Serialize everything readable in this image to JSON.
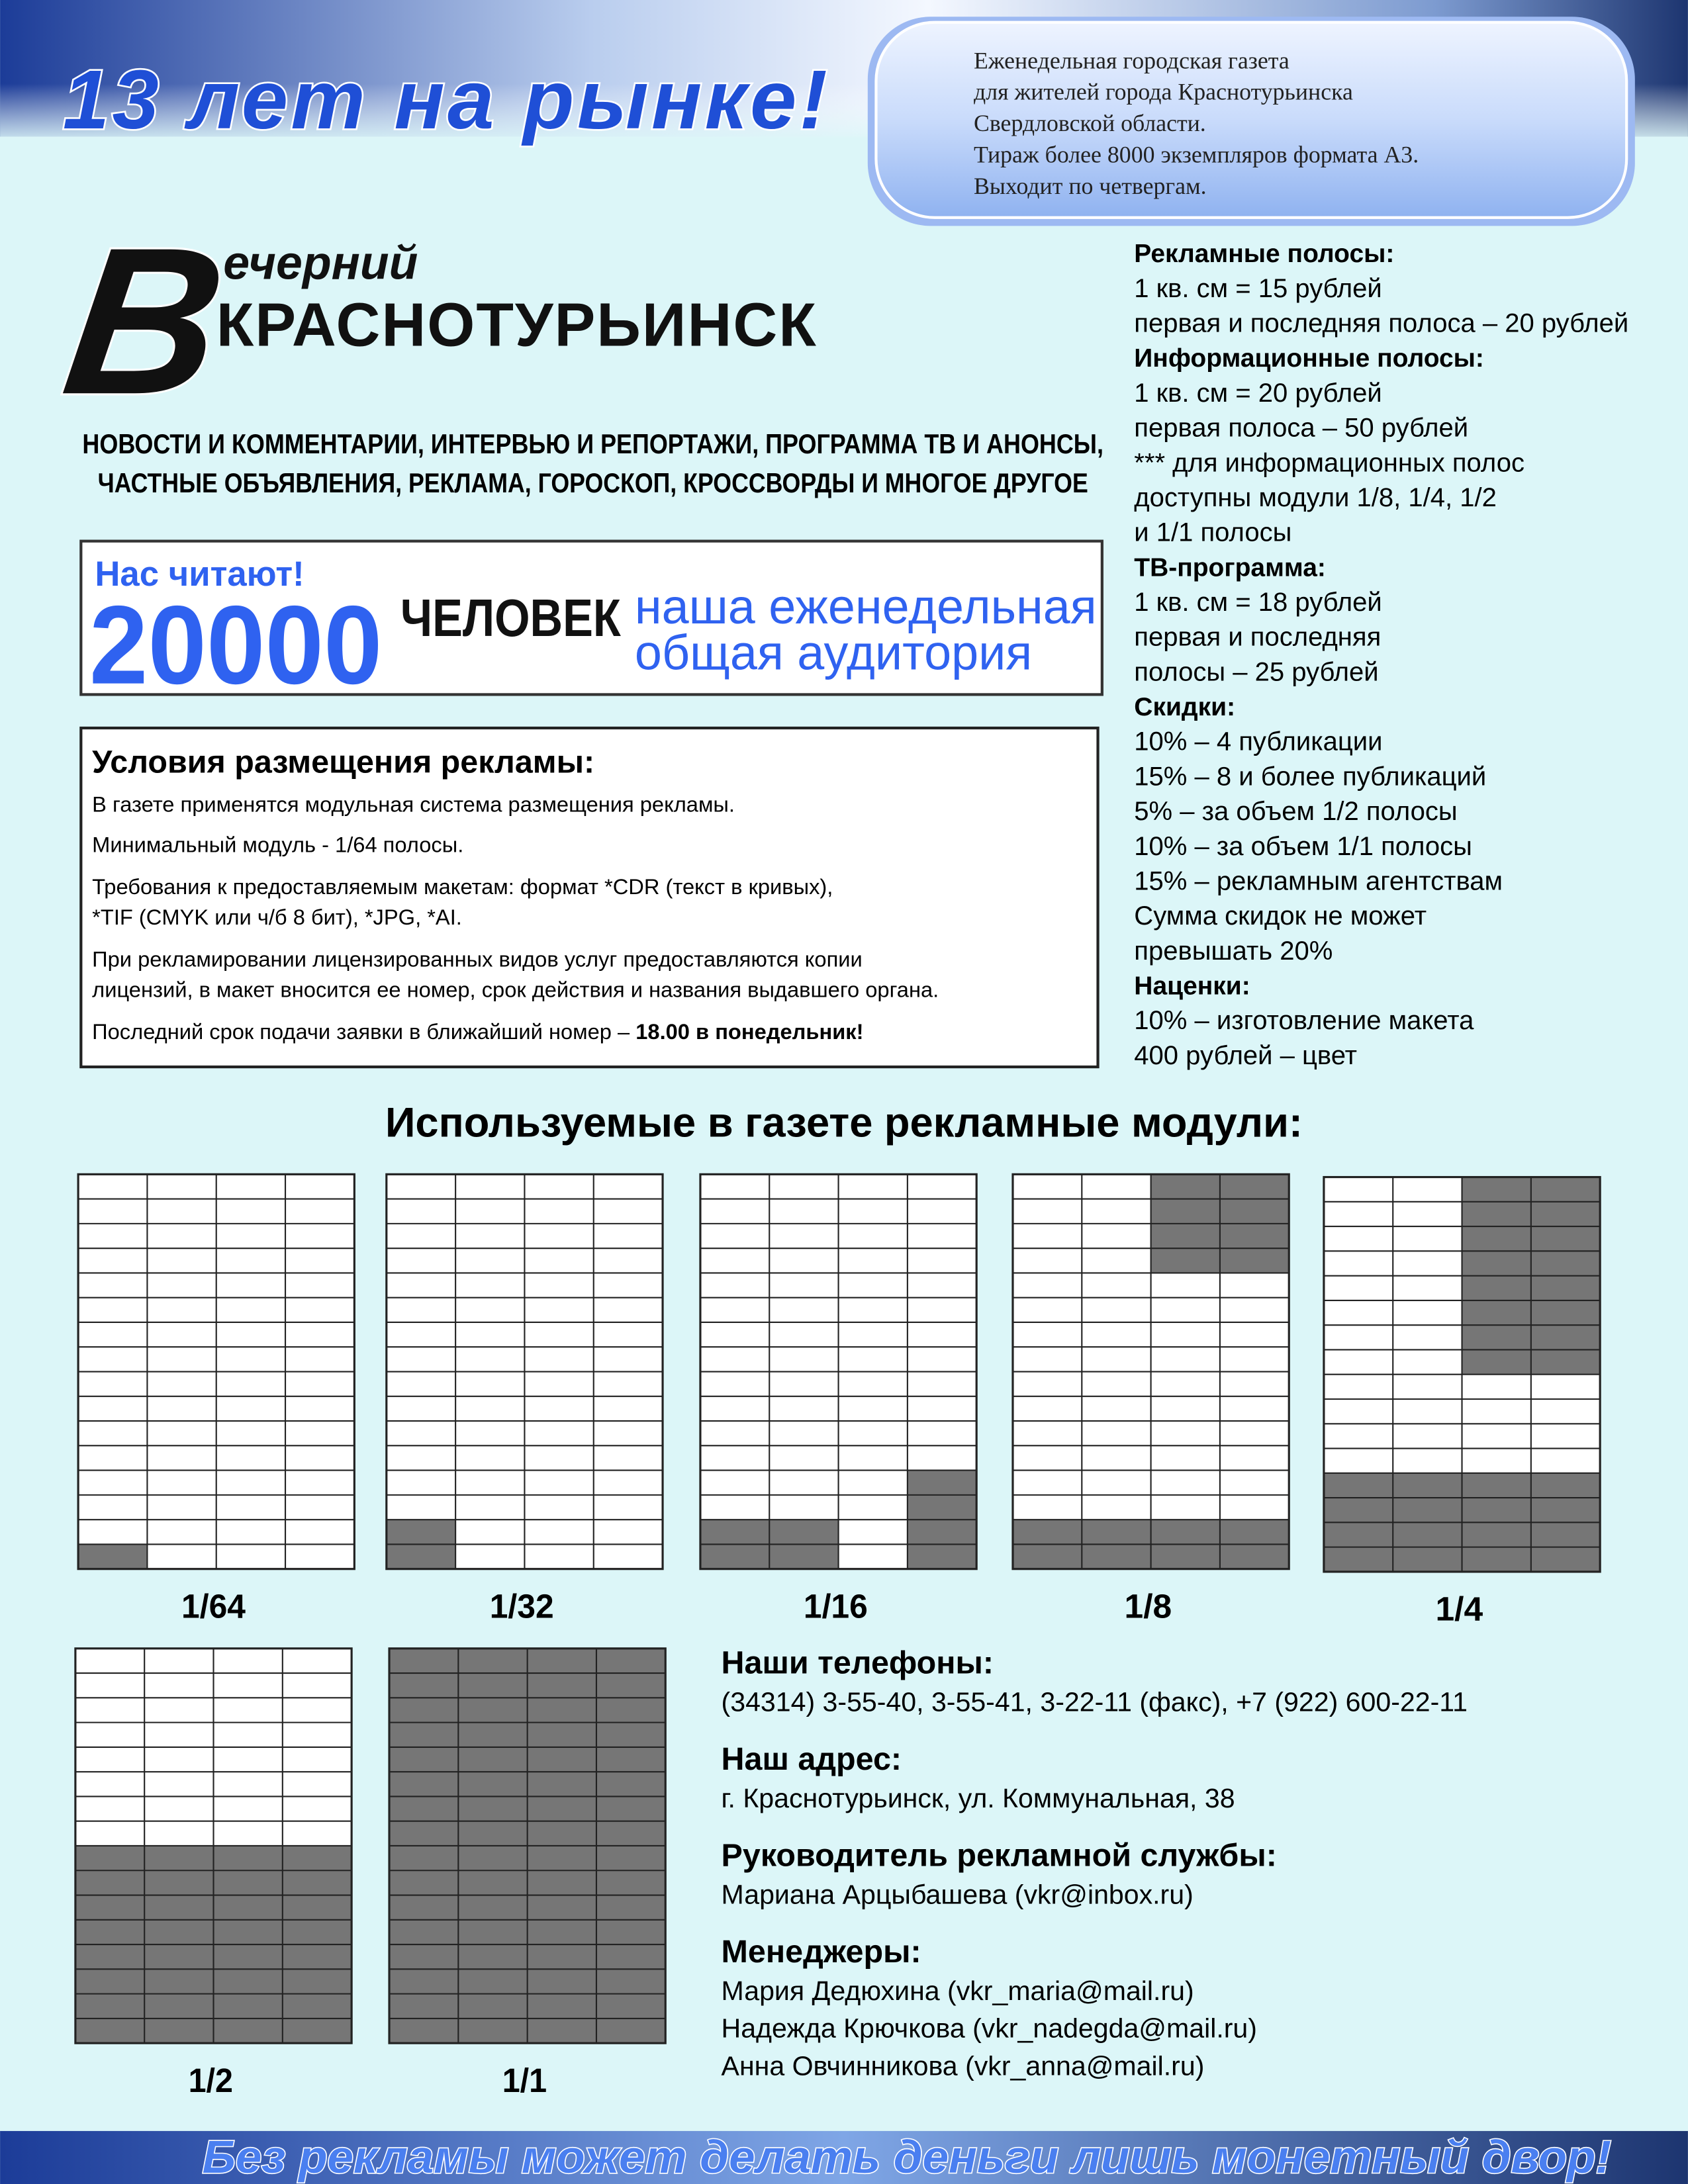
{
  "header": {
    "slogan": "13 лет на рынке!",
    "info": [
      "Еженедельная городская газета",
      "для жителей города Краснотурьинска",
      "Свердловской области.",
      "Тираж более 8000 экземпляров формата А3.",
      "Выходит по четвергам."
    ]
  },
  "logo": {
    "letter": "В",
    "first": "ечерний",
    "name": "КРАСНОТУРЬИНСК"
  },
  "tagline": [
    "НОВОСТИ И КОММЕНТАРИИ, ИНТЕРВЬЮ И РЕПОРТАЖИ, ПРОГРАММА ТВ И АНОНСЫ,",
    "ЧАСТНЫЕ ОБЪЯВЛЕНИЯ, РЕКЛАМА, ГОРОСКОП, КРОССВОРДЫ И МНОГОЕ ДРУГОЕ"
  ],
  "readers": {
    "label": "Нас читают!",
    "number": "20000",
    "unit": "ЧЕЛОВЕК",
    "note": [
      "наша еженедельная",
      "общая аудитория"
    ]
  },
  "conditions": {
    "title": "Условия размещения рекламы:",
    "paragraphs": [
      [
        "В газете применятся модульная система размещения рекламы."
      ],
      [
        "Минимальный модуль - 1/64 полосы."
      ],
      [
        "Требования к предоставляемым макетам: формат *CDR (текст в кривых),",
        "*TIF (CMYK или ч/б 8 бит), *JPG, *AI."
      ],
      [
        "При рекламировании лицензированных видов услуг предоставляются копии",
        "лицензий, в макет вносится ее номер, срок действия и названия выдавшего органа."
      ]
    ],
    "deadline": {
      "text": "Последний срок подачи заявки в ближайший номер – ",
      "emphasis": "18.00 в понедельник!"
    }
  },
  "prices": [
    {
      "title": "Рекламные полосы:",
      "lines": [
        "1 кв. см = 15 рублей",
        "первая и последняя полоса – 20 рублей"
      ]
    },
    {
      "title": "Информационные полосы:",
      "lines": [
        "1 кв. см = 20 рублей",
        "первая полоса – 50 рублей",
        "*** для информационных полос",
        "доступны модули 1/8, 1/4, 1/2",
        "и 1/1 полосы"
      ]
    },
    {
      "title": "ТВ-программа:",
      "lines": [
        "1 кв. см = 18 рублей",
        "первая и последняя",
        "полосы – 25 рублей"
      ]
    },
    {
      "title": "Скидки:",
      "lines": [
        "10% – 4 публикации",
        "15% – 8 и более публикаций",
        "5% – за объем 1/2 полосы",
        "10% – за объем 1/1 полосы",
        "15% – рекламным агентствам",
        "Сумма скидок не может",
        "превышать 20%"
      ]
    },
    {
      "title": "Наценки:",
      "lines": [
        "10% – изготовление макета",
        "400 рублей – цвет"
      ]
    }
  ],
  "modules": {
    "title": "Используемые в газете рекламные модули:",
    "labels": [
      "1/64",
      "1/32",
      "1/16",
      "1/8",
      "1/4",
      "1/2",
      "1/1"
    ]
  },
  "contacts": [
    {
      "title": "Наши телефоны:",
      "lines": [
        "(34314) 3-55-40, 3-55-41, 3-22-11 (факс), +7 (922) 600-22-11"
      ]
    },
    {
      "title": "Наш адрес:",
      "lines": [
        "г. Краснотурьинск, ул. Коммунальная, 38"
      ]
    },
    {
      "title": "Руководитель рекламной службы:",
      "lines": [
        "Мариана Арцыбашева (vkr@inbox.ru)"
      ]
    },
    {
      "title": "Менеджеры:",
      "lines": [
        "Мария Дедюхина (vkr_maria@mail.ru)",
        "Надежда Крючкова (vkr_nadegda@mail.ru)",
        "Анна Овчинникова (vkr_anna@mail.ru)"
      ]
    }
  ],
  "footer": "Без рекламы может делать деньги лишь монетный двор!"
}
